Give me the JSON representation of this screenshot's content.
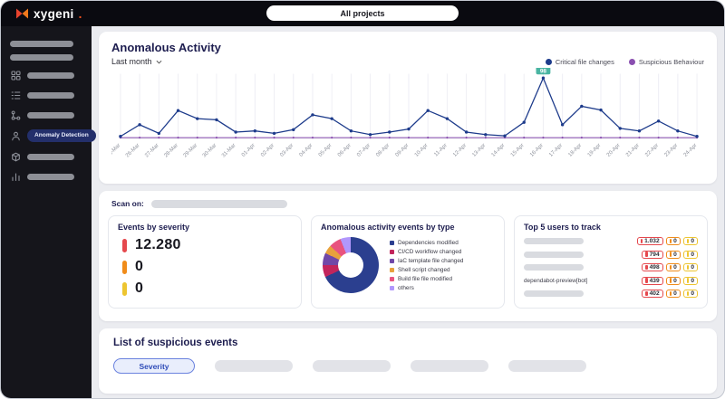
{
  "topbar": {
    "brand": "xygeni",
    "brand_suffix": ".",
    "project_selector": "All projects"
  },
  "sidebar": {
    "active_item": "Anomaly Detection",
    "icon_names": [
      "grid-icon",
      "list-icon",
      "branch-icon",
      "user-icon",
      "package-icon",
      "bar-chart-icon"
    ]
  },
  "anomalous_activity": {
    "title": "Anomalous Activity",
    "period_selector": "Last month",
    "legend": [
      {
        "label": "Critical file changes",
        "color": "#1d3b8b"
      },
      {
        "label": "Suspicious Behaviour",
        "color": "#8a4fb0"
      }
    ]
  },
  "chart_data": [
    {
      "type": "line",
      "title": "Anomalous Activity",
      "x": [
        "25-Mar",
        "26-Mar",
        "27-Mar",
        "28-Mar",
        "29-Mar",
        "30-Mar",
        "31-Mar",
        "01-Apr",
        "02-Apr",
        "03-Apr",
        "04-Apr",
        "05-Apr",
        "06-Apr",
        "07-Apr",
        "08-Apr",
        "09-Apr",
        "10-Apr",
        "11-Apr",
        "12-Apr",
        "13-Apr",
        "14-Apr",
        "15-Apr",
        "16-Apr",
        "17-Apr",
        "18-Apr",
        "19-Apr",
        "20-Apr",
        "21-Apr",
        "22-Apr",
        "23-Apr",
        "24-Apr"
      ],
      "ylim": [
        0,
        105
      ],
      "grid": "vertical-only",
      "legend_position": "top-right",
      "series": [
        {
          "name": "Critical file changes",
          "color": "#1d3b8b",
          "values": [
            3,
            22,
            8,
            45,
            32,
            30,
            10,
            12,
            8,
            14,
            38,
            32,
            12,
            6,
            10,
            15,
            45,
            32,
            10,
            6,
            4,
            26,
            98,
            22,
            52,
            46,
            16,
            12,
            28,
            12,
            3
          ]
        },
        {
          "name": "Suspicious Behaviour",
          "color": "#8a4fb0",
          "values": [
            1,
            1,
            1,
            1,
            1,
            1,
            1,
            1,
            1,
            1,
            1,
            1,
            1,
            1,
            1,
            1,
            1,
            1,
            1,
            1,
            1,
            1,
            1,
            1,
            1,
            1,
            1,
            1,
            1,
            1,
            1
          ]
        }
      ],
      "annotation": {
        "x": "16-Apr",
        "series": "Critical file changes",
        "label": "98",
        "badge_color": "#4ab5a2"
      }
    },
    {
      "type": "pie",
      "donut": true,
      "title": "Anomalous activity events by type",
      "legend_position": "right",
      "labels": [
        "Dependencies modified",
        "CI/CD workflow changed",
        "IaC template file changed",
        "Shell script changed",
        "Build file file modified",
        "others"
      ],
      "values": [
        68,
        7,
        7,
        5,
        7,
        6
      ],
      "colors": [
        "#2b3f8f",
        "#c2255c",
        "#7048a8",
        "#e8a13c",
        "#e8537f",
        "#b197fc"
      ]
    }
  ],
  "scan_panel": {
    "scan_on_label": "Scan on:",
    "events_by_severity": {
      "title": "Events by severity",
      "rows": [
        {
          "severity": "critical",
          "color": "#e5484d",
          "value": "12.280"
        },
        {
          "severity": "high",
          "color": "#f08c1a",
          "value": "0"
        },
        {
          "severity": "low",
          "color": "#edc530",
          "value": "0"
        }
      ]
    },
    "top_users": {
      "title": "Top 5 users to track",
      "rows": [
        {
          "name": null,
          "critical": "1.032",
          "high": "0",
          "low": "0"
        },
        {
          "name": null,
          "critical": "794",
          "high": "0",
          "low": "0"
        },
        {
          "name": null,
          "critical": "498",
          "high": "0",
          "low": "0"
        },
        {
          "name": "dependabot-preview[bot]",
          "critical": "439",
          "high": "0",
          "low": "0"
        },
        {
          "name": null,
          "critical": "402",
          "high": "0",
          "low": "0"
        }
      ]
    }
  },
  "suspicious_events": {
    "title": "List of suspicious events",
    "filters": [
      {
        "label": "Severity",
        "active": true
      },
      {
        "redacted": true
      },
      {
        "redacted": true
      },
      {
        "redacted": true
      },
      {
        "redacted": true
      }
    ]
  }
}
